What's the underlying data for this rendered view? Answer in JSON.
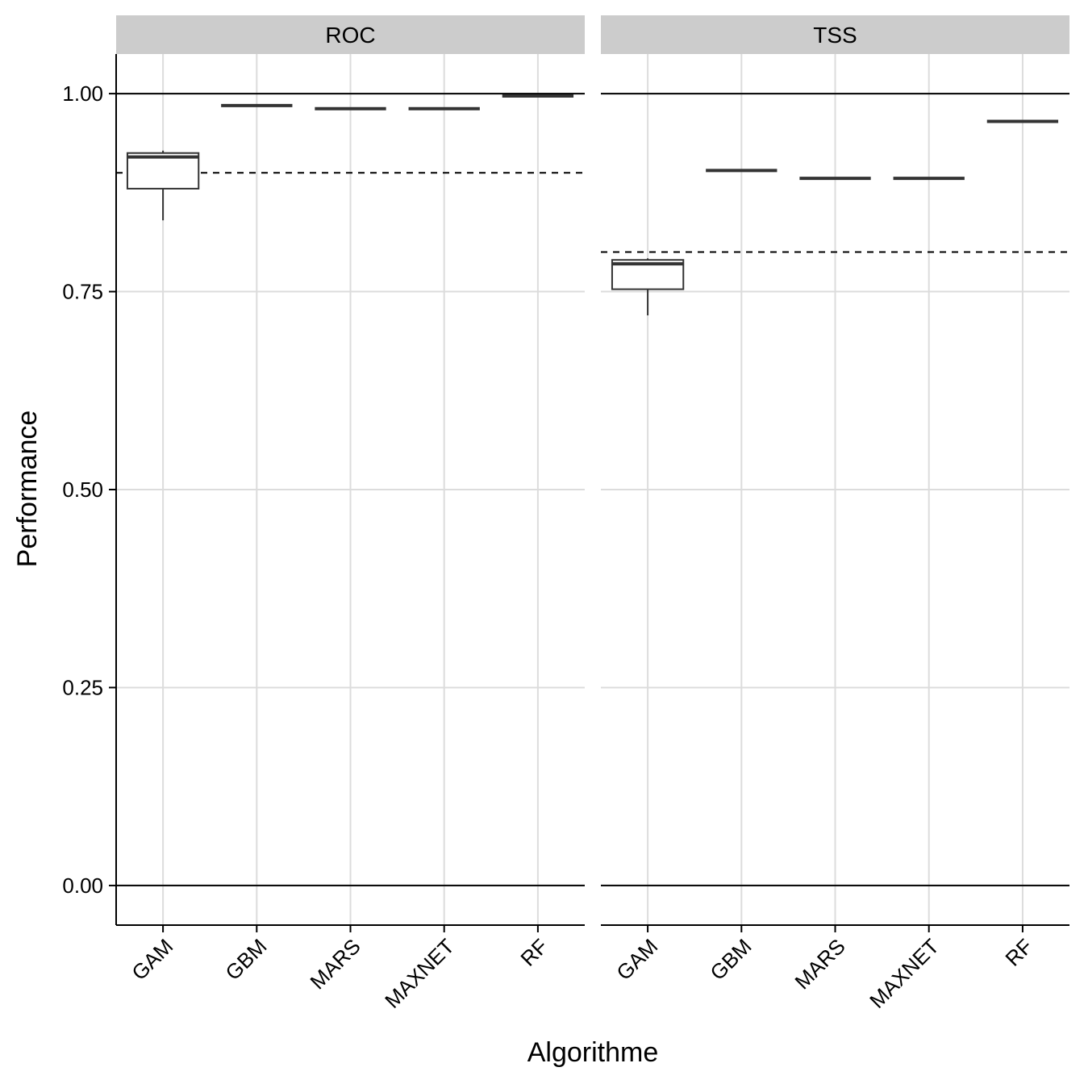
{
  "chart_data": {
    "type": "boxplot",
    "xlabel": "Algorithme",
    "ylabel": "Performance",
    "ylim": [
      -0.05,
      1.05
    ],
    "y_ticks": [
      0.0,
      0.25,
      0.5,
      0.75,
      1.0
    ],
    "y_tick_labels": [
      "0.00",
      "0.25",
      "0.50",
      "0.75",
      "1.00"
    ],
    "categories": [
      "GAM",
      "GBM",
      "MARS",
      "MAXNET",
      "RF"
    ],
    "reference_solid_lines": [
      0.0,
      1.0
    ],
    "panels": [
      {
        "name": "ROC",
        "threshold": 0.9,
        "boxes": [
          {
            "category": "GAM",
            "min": 0.84,
            "q1": 0.88,
            "median": 0.92,
            "q3": 0.925,
            "max": 0.928
          },
          {
            "category": "GBM",
            "min": 0.985,
            "q1": 0.985,
            "median": 0.985,
            "q3": 0.985,
            "max": 0.985
          },
          {
            "category": "MARS",
            "min": 0.981,
            "q1": 0.981,
            "median": 0.981,
            "q3": 0.981,
            "max": 0.981
          },
          {
            "category": "MAXNET",
            "min": 0.981,
            "q1": 0.981,
            "median": 0.981,
            "q3": 0.981,
            "max": 0.981
          },
          {
            "category": "RF",
            "min": 0.997,
            "q1": 0.997,
            "median": 0.997,
            "q3": 0.997,
            "max": 0.997
          }
        ]
      },
      {
        "name": "TSS",
        "threshold": 0.8,
        "boxes": [
          {
            "category": "GAM",
            "min": 0.72,
            "q1": 0.753,
            "median": 0.785,
            "q3": 0.79,
            "max": 0.792
          },
          {
            "category": "GBM",
            "min": 0.903,
            "q1": 0.903,
            "median": 0.903,
            "q3": 0.903,
            "max": 0.903
          },
          {
            "category": "MARS",
            "min": 0.893,
            "q1": 0.893,
            "median": 0.893,
            "q3": 0.893,
            "max": 0.893
          },
          {
            "category": "MAXNET",
            "min": 0.893,
            "q1": 0.893,
            "median": 0.893,
            "q3": 0.893,
            "max": 0.893
          },
          {
            "category": "RF",
            "min": 0.965,
            "q1": 0.965,
            "median": 0.965,
            "q3": 0.965,
            "max": 0.965
          }
        ]
      }
    ]
  },
  "colors": {
    "grid": "#dcdcdc",
    "box_line": "#333333",
    "strip_fill": "#cccccc",
    "axis": "#000000"
  }
}
